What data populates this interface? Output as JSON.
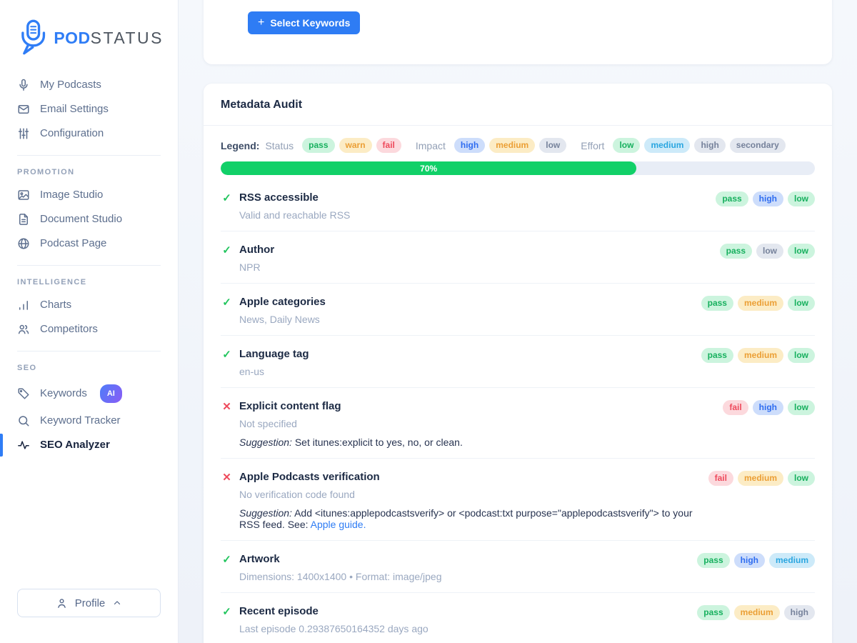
{
  "colors": {
    "accent_blue": "#2f7df6",
    "progress_green": "#11d068",
    "pass_green": "#17b05e",
    "warn_yellow": "#eb9f35",
    "fail_red": "#ee4a5c",
    "page_background": "#f5f8fc"
  },
  "brand": {
    "name_bold": "POD",
    "name_light": "STATUS"
  },
  "sidebar": {
    "sections": [
      {
        "label": "",
        "items": [
          {
            "label": "My Podcasts",
            "icon": "microphone-icon"
          },
          {
            "label": "Email Settings",
            "icon": "mail-icon"
          },
          {
            "label": "Configuration",
            "icon": "sliders-icon"
          }
        ]
      },
      {
        "label": "PROMOTION",
        "items": [
          {
            "label": "Image Studio",
            "icon": "image-icon"
          },
          {
            "label": "Document Studio",
            "icon": "document-icon"
          },
          {
            "label": "Podcast Page",
            "icon": "globe-icon"
          }
        ]
      },
      {
        "label": "INTELLIGENCE",
        "items": [
          {
            "label": "Charts",
            "icon": "bar-chart-icon"
          },
          {
            "label": "Competitors",
            "icon": "people-icon"
          }
        ]
      },
      {
        "label": "SEO",
        "items": [
          {
            "label": "Keywords",
            "icon": "tag-icon",
            "badge": "AI"
          },
          {
            "label": "Keyword Tracker",
            "icon": "search-icon"
          },
          {
            "label": "SEO Analyzer",
            "icon": "activity-icon",
            "active": true
          }
        ]
      }
    ],
    "profile_label": "Profile"
  },
  "top_card": {
    "button_plus": "+",
    "button_label": "Select Keywords"
  },
  "audit": {
    "title": "Metadata Audit",
    "legend": {
      "label": "Legend:",
      "groups": [
        {
          "name": "Status",
          "chips": [
            {
              "label": "pass",
              "variant": "green"
            },
            {
              "label": "warn",
              "variant": "yellow"
            },
            {
              "label": "fail",
              "variant": "red"
            }
          ]
        },
        {
          "name": "Impact",
          "chips": [
            {
              "label": "high",
              "variant": "blue"
            },
            {
              "label": "medium",
              "variant": "yellow"
            },
            {
              "label": "low",
              "variant": "gray"
            }
          ]
        },
        {
          "name": "Effort",
          "chips": [
            {
              "label": "low",
              "variant": "green"
            },
            {
              "label": "medium",
              "variant": "sky"
            },
            {
              "label": "high",
              "variant": "gray"
            },
            {
              "label": "secondary",
              "variant": "gray"
            }
          ]
        }
      ]
    },
    "progress": {
      "percent": 70,
      "label": "70%"
    },
    "rows": [
      {
        "status": "pass",
        "title": "RSS accessible",
        "subtitle": "Valid and reachable RSS",
        "chips": [
          {
            "label": "pass",
            "variant": "green"
          },
          {
            "label": "high",
            "variant": "blue"
          },
          {
            "label": "low",
            "variant": "green"
          }
        ]
      },
      {
        "status": "pass",
        "title": "Author",
        "subtitle": "NPR",
        "chips": [
          {
            "label": "pass",
            "variant": "green"
          },
          {
            "label": "low",
            "variant": "gray"
          },
          {
            "label": "low",
            "variant": "green"
          }
        ]
      },
      {
        "status": "pass",
        "title": "Apple categories",
        "subtitle": "News, Daily News",
        "chips": [
          {
            "label": "pass",
            "variant": "green"
          },
          {
            "label": "medium",
            "variant": "yellow"
          },
          {
            "label": "low",
            "variant": "green"
          }
        ]
      },
      {
        "status": "pass",
        "title": "Language tag",
        "subtitle": "en-us",
        "chips": [
          {
            "label": "pass",
            "variant": "green"
          },
          {
            "label": "medium",
            "variant": "yellow"
          },
          {
            "label": "low",
            "variant": "green"
          }
        ]
      },
      {
        "status": "fail",
        "title": "Explicit content flag",
        "subtitle": "Not specified",
        "suggestion": {
          "prefix": "Suggestion:",
          "text": " Set itunes:explicit to yes, no, or clean."
        },
        "chips": [
          {
            "label": "fail",
            "variant": "red"
          },
          {
            "label": "high",
            "variant": "blue"
          },
          {
            "label": "low",
            "variant": "green"
          }
        ]
      },
      {
        "status": "fail",
        "title": "Apple Podcasts verification",
        "subtitle": "No verification code found",
        "suggestion": {
          "prefix": "Suggestion:",
          "text": " Add <itunes:applepodcastsverify> or <podcast:txt purpose=\"applepodcastsverify\"> to your RSS feed. See: ",
          "link": "Apple guide."
        },
        "chips": [
          {
            "label": "fail",
            "variant": "red"
          },
          {
            "label": "medium",
            "variant": "yellow"
          },
          {
            "label": "low",
            "variant": "green"
          }
        ]
      },
      {
        "status": "pass",
        "title": "Artwork",
        "subtitle": "Dimensions: 1400x1400 • Format: image/jpeg",
        "chips": [
          {
            "label": "pass",
            "variant": "green"
          },
          {
            "label": "high",
            "variant": "blue"
          },
          {
            "label": "medium",
            "variant": "sky"
          }
        ]
      },
      {
        "status": "pass",
        "title": "Recent episode",
        "subtitle": "Last episode 0.29387650164352 days ago",
        "chips": [
          {
            "label": "pass",
            "variant": "green"
          },
          {
            "label": "medium",
            "variant": "yellow"
          },
          {
            "label": "high",
            "variant": "gray"
          }
        ]
      }
    ]
  }
}
